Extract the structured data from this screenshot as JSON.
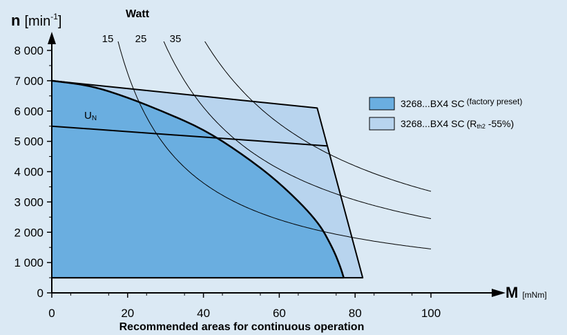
{
  "chart_data": {
    "type": "area",
    "ylabel": {
      "symbol": "n",
      "unit_open": "[min",
      "unit_sup": "-1",
      "unit_close": "]"
    },
    "xlabel": {
      "symbol": "M",
      "unit": "[mNm]"
    },
    "title": "Recommended areas for continuous operation",
    "watt_label": "Watt",
    "xlim": [
      0,
      100
    ],
    "ylim": [
      0,
      8000
    ],
    "x_ticks": [
      {
        "value": 0,
        "label": "0"
      },
      {
        "value": 20,
        "label": "20"
      },
      {
        "value": 40,
        "label": "40"
      },
      {
        "value": 60,
        "label": "60"
      },
      {
        "value": 80,
        "label": "80"
      },
      {
        "value": 100,
        "label": "100"
      }
    ],
    "y_ticks": [
      {
        "value": 0,
        "label": "0"
      },
      {
        "value": 1000,
        "label": "1 000"
      },
      {
        "value": 2000,
        "label": "2 000"
      },
      {
        "value": 3000,
        "label": "3 000"
      },
      {
        "value": 4000,
        "label": "4 000"
      },
      {
        "value": 5000,
        "label": "5 000"
      },
      {
        "value": 6000,
        "label": "6 000"
      },
      {
        "value": 7000,
        "label": "7 000"
      },
      {
        "value": 8000,
        "label": "8 000"
      }
    ],
    "series": [
      {
        "name": "3268...BX4 SC",
        "name_suffix": "(factory preset)",
        "color": "#6aaee0",
        "points": [
          [
            0,
            500
          ],
          [
            0,
            7000
          ],
          [
            10,
            6850
          ],
          [
            20,
            6450
          ],
          [
            30,
            5950
          ],
          [
            40,
            5400
          ],
          [
            50,
            4600
          ],
          [
            60,
            3650
          ],
          [
            70,
            2400
          ],
          [
            74,
            1500
          ],
          [
            76,
            900
          ],
          [
            77,
            500
          ]
        ]
      },
      {
        "name": "3268...BX4 SC",
        "name_suffix_open": "(R",
        "name_suffix_sub": "th2",
        "name_suffix_close": " -55%)",
        "color": "#b8d4ee",
        "points": [
          [
            0,
            500
          ],
          [
            0,
            7000
          ],
          [
            70,
            6100
          ],
          [
            82,
            500
          ]
        ]
      }
    ],
    "un_line": {
      "label_main": "U",
      "label_sub": "N",
      "points": [
        [
          0,
          5500
        ],
        [
          72.5,
          4850
        ]
      ]
    },
    "power_curves": [
      {
        "watts": 15,
        "label": "15",
        "points": [
          [
            15,
            8000
          ],
          [
            100,
            1450
          ]
        ]
      },
      {
        "watts": 25,
        "label": "25",
        "points": [
          [
            25,
            8000
          ],
          [
            100,
            2450
          ]
        ]
      },
      {
        "watts": 35,
        "label": "35",
        "points": [
          [
            35,
            8000
          ],
          [
            100,
            3350
          ]
        ]
      }
    ]
  }
}
